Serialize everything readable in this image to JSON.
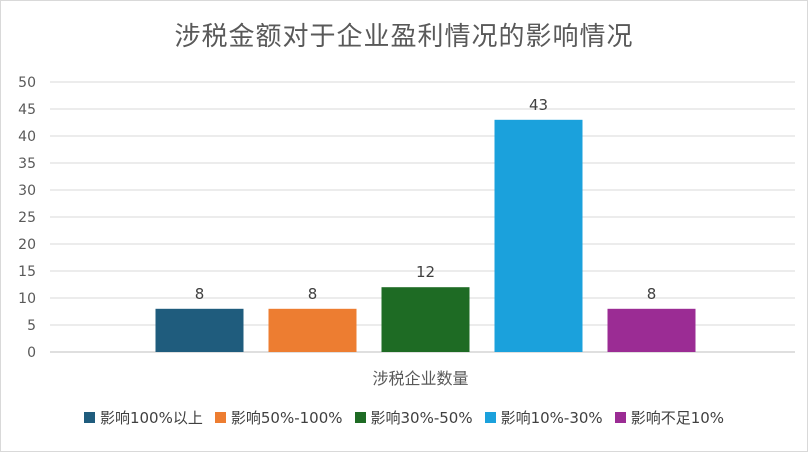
{
  "chart_data": {
    "type": "bar",
    "title": "涉税金额对于企业盈利情况的影响情况",
    "xlabel": "涉税企业数量",
    "ylabel": "",
    "ylim": [
      0,
      50
    ],
    "ytick_step": 5,
    "yticks": [
      "0",
      "5",
      "10",
      "15",
      "20",
      "25",
      "30",
      "35",
      "40",
      "45",
      "50"
    ],
    "grid": true,
    "legend_position": "bottom",
    "series": [
      {
        "name": "影响100%以上",
        "value": 8,
        "color": "#1F5C7D"
      },
      {
        "name": "影响50%-100%",
        "value": 8,
        "color": "#ED7D31"
      },
      {
        "name": "影响30%-50%",
        "value": 12,
        "color": "#1E6B24"
      },
      {
        "name": "影响10%-30%",
        "value": 43,
        "color": "#1BA1DC"
      },
      {
        "name": "影响不足10%",
        "value": 8,
        "color": "#9B2C94"
      }
    ]
  }
}
